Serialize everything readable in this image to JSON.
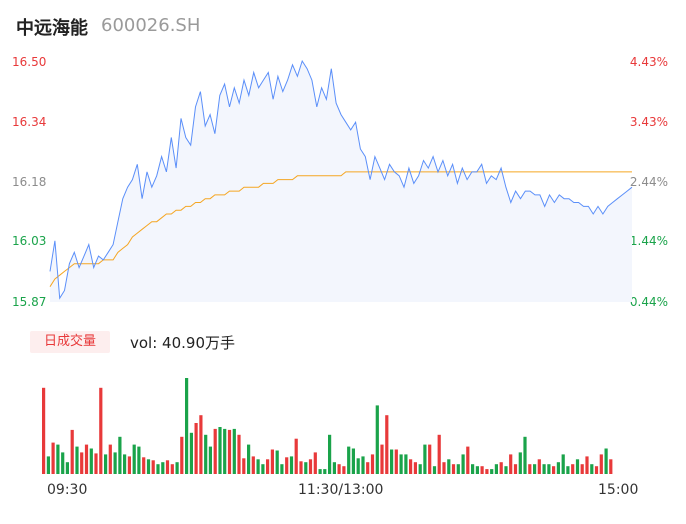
{
  "header": {
    "name": "中远海能",
    "code": "600026.SH"
  },
  "volume": {
    "tag": "日成交量",
    "summary": "vol: 40.90万手"
  },
  "colors": {
    "up": "#e8393a",
    "down": "#1aa34a",
    "price_line": "#5b8ff9",
    "avg_line": "#f5a623",
    "area": "#f3f6fd"
  },
  "chart_data": [
    {
      "type": "line",
      "title": "",
      "y_left_ticks": [
        "16.50",
        "16.34",
        "16.18",
        "16.03",
        "15.87"
      ],
      "y_right_ticks": [
        "4.43%",
        "3.43%",
        "2.44%",
        "1.44%",
        "0.44%"
      ],
      "y_left_ticks_values": [
        16.5,
        16.34,
        16.18,
        16.03,
        15.87
      ],
      "ylim": [
        15.87,
        16.5
      ],
      "x_ticks": [
        "09:30",
        "11:30/13:00",
        "15:00"
      ],
      "x_range_minutes": [
        0,
        240
      ],
      "series": [
        {
          "style": "price",
          "x": [
            0,
            2,
            4,
            6,
            8,
            10,
            12,
            14,
            16,
            18,
            20,
            22,
            24,
            26,
            28,
            30,
            32,
            34,
            36,
            38,
            40,
            42,
            44,
            46,
            48,
            50,
            52,
            54,
            56,
            58,
            60,
            62,
            64,
            66,
            68,
            70,
            72,
            74,
            76,
            78,
            80,
            82,
            84,
            86,
            88,
            90,
            92,
            94,
            96,
            98,
            100,
            102,
            104,
            106,
            108,
            110,
            112,
            114,
            116,
            118,
            120,
            122,
            124,
            126,
            128,
            130,
            132,
            134,
            136,
            138,
            140,
            142,
            144,
            146,
            148,
            150,
            152,
            154,
            156,
            158,
            160,
            162,
            164,
            166,
            168,
            170,
            172,
            174,
            176,
            178,
            180,
            182,
            184,
            186,
            188,
            190,
            192,
            194,
            196,
            198,
            200,
            202,
            204,
            206,
            208,
            210,
            212,
            214,
            216,
            218,
            220,
            222,
            224,
            226,
            228,
            230,
            232,
            234,
            236,
            238,
            240
          ],
          "y": [
            15.95,
            16.03,
            15.88,
            15.9,
            15.97,
            16.0,
            15.96,
            15.99,
            16.02,
            15.96,
            15.99,
            15.98,
            16.0,
            16.02,
            16.08,
            16.14,
            16.17,
            16.19,
            16.23,
            16.14,
            16.21,
            16.17,
            16.2,
            16.25,
            16.21,
            16.3,
            16.22,
            16.35,
            16.3,
            16.28,
            16.38,
            16.42,
            16.33,
            16.36,
            16.31,
            16.41,
            16.44,
            16.38,
            16.43,
            16.39,
            16.45,
            16.41,
            16.47,
            16.43,
            16.45,
            16.47,
            16.4,
            16.46,
            16.42,
            16.45,
            16.49,
            16.46,
            16.5,
            16.48,
            16.45,
            16.38,
            16.43,
            16.4,
            16.48,
            16.39,
            16.36,
            16.34,
            16.32,
            16.34,
            16.27,
            16.25,
            16.19,
            16.25,
            16.22,
            16.19,
            16.23,
            16.21,
            16.2,
            16.17,
            16.22,
            16.18,
            16.2,
            16.24,
            16.22,
            16.25,
            16.21,
            16.24,
            16.2,
            16.23,
            16.18,
            16.22,
            16.19,
            16.21,
            16.21,
            16.23,
            16.18,
            16.2,
            16.19,
            16.22,
            16.17,
            16.13,
            16.16,
            16.14,
            16.16,
            16.16,
            16.15,
            16.15,
            16.12,
            16.15,
            16.13,
            16.15,
            16.14,
            16.14,
            16.13,
            16.13,
            16.12,
            16.12,
            16.1,
            16.12,
            16.1,
            16.12,
            16.13,
            16.14,
            16.15,
            16.16,
            16.17
          ]
        },
        {
          "style": "average",
          "x": [
            0,
            2,
            4,
            6,
            8,
            10,
            12,
            14,
            16,
            18,
            20,
            22,
            24,
            26,
            28,
            30,
            32,
            34,
            36,
            38,
            40,
            42,
            44,
            46,
            48,
            50,
            52,
            54,
            56,
            58,
            60,
            62,
            64,
            66,
            68,
            70,
            72,
            74,
            76,
            78,
            80,
            82,
            84,
            86,
            88,
            90,
            92,
            94,
            96,
            98,
            100,
            102,
            104,
            106,
            108,
            110,
            112,
            114,
            116,
            118,
            120,
            122,
            124,
            126,
            128,
            130,
            132,
            134,
            136,
            138,
            140,
            142,
            144,
            146,
            148,
            150,
            152,
            154,
            156,
            158,
            160,
            162,
            164,
            166,
            168,
            170,
            172,
            174,
            176,
            178,
            180,
            182,
            184,
            186,
            188,
            190,
            192,
            194,
            196,
            198,
            200,
            202,
            204,
            206,
            208,
            210,
            212,
            214,
            216,
            218,
            220,
            222,
            224,
            226,
            228,
            230,
            232,
            234,
            236,
            238,
            240
          ],
          "y": [
            15.91,
            15.93,
            15.94,
            15.95,
            15.96,
            15.97,
            15.97,
            15.97,
            15.97,
            15.97,
            15.97,
            15.98,
            15.98,
            15.98,
            16.0,
            16.01,
            16.02,
            16.04,
            16.05,
            16.06,
            16.07,
            16.08,
            16.08,
            16.09,
            16.1,
            16.1,
            16.11,
            16.11,
            16.12,
            16.12,
            16.13,
            16.13,
            16.14,
            16.14,
            16.15,
            16.15,
            16.15,
            16.16,
            16.16,
            16.16,
            16.17,
            16.17,
            16.17,
            16.17,
            16.18,
            16.18,
            16.18,
            16.19,
            16.19,
            16.19,
            16.19,
            16.2,
            16.2,
            16.2,
            16.2,
            16.2,
            16.2,
            16.2,
            16.2,
            16.2,
            16.2,
            16.21,
            16.21,
            16.21,
            16.21,
            16.21,
            16.21,
            16.21,
            16.21,
            16.21,
            16.21,
            16.21,
            16.21,
            16.21,
            16.21,
            16.21,
            16.21,
            16.21,
            16.21,
            16.21,
            16.21,
            16.21,
            16.21,
            16.21,
            16.21,
            16.21,
            16.21,
            16.21,
            16.21,
            16.21,
            16.21,
            16.21,
            16.21,
            16.21,
            16.21,
            16.21,
            16.21,
            16.21,
            16.21,
            16.21,
            16.21,
            16.21,
            16.21,
            16.21,
            16.21,
            16.21,
            16.21,
            16.21,
            16.21,
            16.21,
            16.21,
            16.21,
            16.21,
            16.21,
            16.21,
            16.21,
            16.21,
            16.21,
            16.21,
            16.21,
            16.21
          ]
        }
      ]
    },
    {
      "type": "bar",
      "title": "",
      "ylim": [
        0,
        100
      ],
      "volumes": [
        88,
        18,
        32,
        30,
        22,
        12,
        45,
        28,
        22,
        30,
        26,
        21,
        88,
        20,
        30,
        22,
        38,
        20,
        18,
        30,
        28,
        17,
        15,
        14,
        10,
        12,
        14,
        10,
        12,
        38,
        98,
        42,
        52,
        60,
        40,
        28,
        46,
        48,
        46,
        45,
        46,
        40,
        16,
        30,
        18,
        15,
        10,
        15,
        25,
        24,
        10,
        17,
        18,
        36,
        13,
        12,
        15,
        22,
        5,
        5,
        40,
        12,
        10,
        8,
        28,
        26,
        16,
        18,
        12,
        20,
        70,
        30,
        60,
        25,
        25,
        20,
        20,
        15,
        12,
        10,
        30,
        30,
        8,
        40,
        12,
        15,
        10,
        10,
        20,
        28,
        10,
        8,
        8,
        5,
        5,
        10,
        12,
        8,
        20,
        10,
        22,
        38,
        10,
        10,
        15,
        10,
        10,
        8,
        12,
        20,
        8,
        10,
        15,
        10,
        18,
        10,
        8,
        20,
        26,
        15
      ]
    }
  ]
}
